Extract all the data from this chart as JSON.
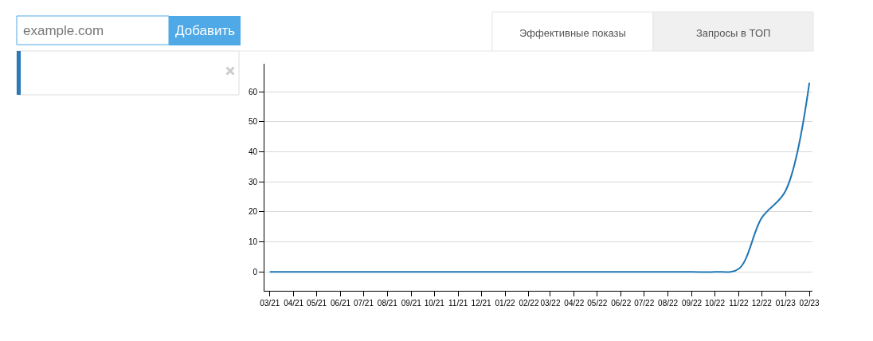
{
  "chart_data": {
    "type": "line",
    "x": [
      "2021-03",
      "2021-04",
      "2021-05",
      "2021-06",
      "2021-07",
      "2021-08",
      "2021-09",
      "2021-10",
      "2021-11",
      "2021-12",
      "2022-01",
      "2022-02",
      "2022-03",
      "2022-04",
      "2022-05",
      "2022-06",
      "2022-07",
      "2022-08",
      "2022-09",
      "2022-10",
      "2022-11",
      "2022-12",
      "2023-01",
      "2023-02"
    ],
    "values": [
      0,
      0,
      0,
      0,
      0,
      0,
      0,
      0,
      0,
      0,
      0,
      0,
      0,
      0,
      0,
      0,
      0,
      0,
      0,
      0,
      1,
      18,
      27,
      63
    ],
    "color": "#1f77b4",
    "xlim": [
      "2021-02-22",
      "2023-02-05"
    ],
    "xticks": [
      {
        "value": "2021-03",
        "label": "03/21"
      },
      {
        "value": "2021-04",
        "label": "04/21"
      },
      {
        "value": "2021-05",
        "label": "05/21"
      },
      {
        "value": "2021-06",
        "label": "06/21"
      },
      {
        "value": "2021-07",
        "label": "07/21"
      },
      {
        "value": "2021-08",
        "label": "08/21"
      },
      {
        "value": "2021-09",
        "label": "09/21"
      },
      {
        "value": "2021-10",
        "label": "10/21"
      },
      {
        "value": "2021-11",
        "label": "11/21"
      },
      {
        "value": "2021-12",
        "label": "12/21"
      },
      {
        "value": "2022-01",
        "label": "01/22"
      },
      {
        "value": "2022-02",
        "label": "02/22"
      },
      {
        "value": "2022-03",
        "label": "03/22"
      },
      {
        "value": "2022-04",
        "label": "04/22"
      },
      {
        "value": "2022-05",
        "label": "05/22"
      },
      {
        "value": "2022-06",
        "label": "06/22"
      },
      {
        "value": "2022-07",
        "label": "07/22"
      },
      {
        "value": "2022-08",
        "label": "08/22"
      },
      {
        "value": "2022-09",
        "label": "09/22"
      },
      {
        "value": "2022-10",
        "label": "10/22"
      },
      {
        "value": "2022-11",
        "label": "11/22"
      },
      {
        "value": "2022-12",
        "label": "12/22"
      },
      {
        "value": "2023-01",
        "label": "01/23"
      },
      {
        "value": "2023-02",
        "label": "02/23"
      }
    ],
    "ylim": [
      -6.3,
      69.3
    ],
    "yticks": [
      0,
      10,
      20,
      30,
      40,
      50,
      60
    ],
    "grid": "y",
    "annotations": [
      "example.com",
      "Добавить",
      "Эффективные показы",
      "Запросы в ТОП"
    ]
  }
}
